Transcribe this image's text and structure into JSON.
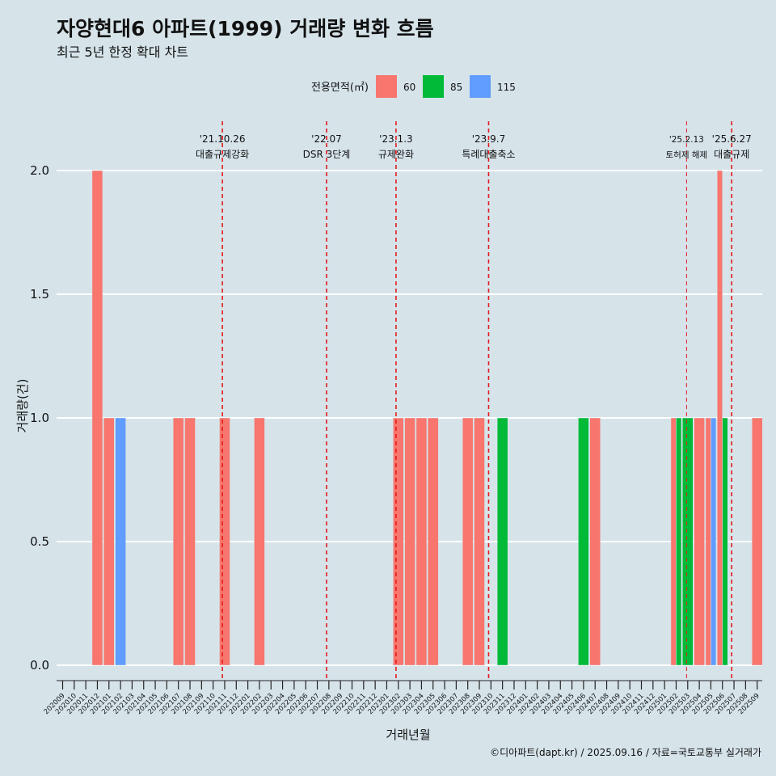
{
  "chart_data": {
    "type": "bar",
    "title": "자양현대6 아파트(1999) 거래량 변화 흐름",
    "subtitle": "최근 5년 한정 확대 차트",
    "xlabel": "거래년월",
    "ylabel": "거래량(건)",
    "ylim": [
      0,
      2.1
    ],
    "y_ticks": [
      "0.0",
      "0.5",
      "1.0",
      "1.5",
      "2.0"
    ],
    "legend": {
      "title": "전용면적(㎡)",
      "placement": "top",
      "entries": [
        {
          "name": "60",
          "color": "#f8766d"
        },
        {
          "name": "85",
          "color": "#00ba38"
        },
        {
          "name": "115",
          "color": "#619cff"
        }
      ]
    },
    "categories": [
      "202009",
      "202010",
      "202011",
      "202012",
      "202101",
      "202102",
      "202103",
      "202104",
      "202105",
      "202106",
      "202107",
      "202108",
      "202109",
      "202110",
      "202111",
      "202112",
      "202201",
      "202202",
      "202203",
      "202204",
      "202205",
      "202206",
      "202207",
      "202208",
      "202209",
      "202210",
      "202211",
      "202212",
      "202301",
      "202302",
      "202303",
      "202304",
      "202305",
      "202306",
      "202307",
      "202308",
      "202309",
      "202310",
      "202311",
      "202312",
      "202401",
      "202402",
      "202403",
      "202404",
      "202405",
      "202406",
      "202407",
      "202408",
      "202409",
      "202410",
      "202411",
      "202412",
      "202501",
      "202502",
      "202503",
      "202504",
      "202505",
      "202506",
      "202507",
      "202508",
      "202509"
    ],
    "bars": [
      {
        "month": "202012",
        "series": "60",
        "value": 2
      },
      {
        "month": "202101",
        "series": "60",
        "value": 1
      },
      {
        "month": "202102",
        "series": "115",
        "value": 1
      },
      {
        "month": "202107",
        "series": "60",
        "value": 1
      },
      {
        "month": "202108",
        "series": "60",
        "value": 1
      },
      {
        "month": "202111",
        "series": "60",
        "value": 1
      },
      {
        "month": "202202",
        "series": "60",
        "value": 1
      },
      {
        "month": "202302",
        "series": "60",
        "value": 1
      },
      {
        "month": "202303",
        "series": "60",
        "value": 1
      },
      {
        "month": "202304",
        "series": "60",
        "value": 1
      },
      {
        "month": "202305",
        "series": "60",
        "value": 1
      },
      {
        "month": "202308",
        "series": "60",
        "value": 1
      },
      {
        "month": "202309",
        "series": "60",
        "value": 1
      },
      {
        "month": "202311",
        "series": "85",
        "value": 1
      },
      {
        "month": "202406",
        "series": "85",
        "value": 1
      },
      {
        "month": "202407",
        "series": "60",
        "value": 1
      },
      {
        "month": "202502",
        "series": "60",
        "value": 1
      },
      {
        "month": "202502",
        "series": "85",
        "value": 1
      },
      {
        "month": "202503",
        "series": "85",
        "value": 1
      },
      {
        "month": "202504",
        "series": "60",
        "value": 1
      },
      {
        "month": "202505",
        "series": "60",
        "value": 1
      },
      {
        "month": "202505",
        "series": "115",
        "value": 1
      },
      {
        "month": "202506",
        "series": "60",
        "value": 2
      },
      {
        "month": "202506",
        "series": "85",
        "value": 1
      },
      {
        "month": "202509",
        "series": "60",
        "value": 1
      }
    ],
    "annotations": [
      {
        "date_label": "'21.10.26",
        "text": "대출규제강화",
        "x_month_index": 13.8
      },
      {
        "date_label": "'22.07",
        "text": "DSR 3단계",
        "x_month_index": 22.8
      },
      {
        "date_label": "'23.1.3",
        "text": "규제완화",
        "x_month_index": 28.8
      },
      {
        "date_label": "'23.9.7",
        "text": "특례대출축소",
        "x_month_index": 36.8
      },
      {
        "date_label": "'25.2.13",
        "text": "토허제 해제",
        "x_month_index": 53.9
      },
      {
        "date_label": "'25.6.27",
        "text": "대출규제",
        "x_month_index": 57.8
      }
    ],
    "footer": "©디아파트(dapt.kr) / 2025.09.16 / 자료=국토교통부 실거래가"
  }
}
